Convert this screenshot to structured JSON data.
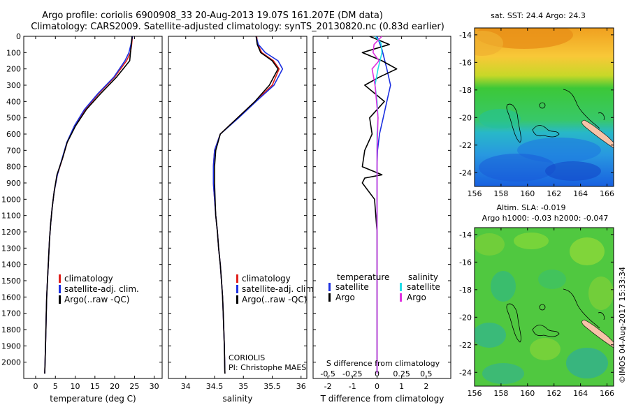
{
  "header": {
    "line1": "Argo profile: coriolis 6900908_33 20-Aug-2013 19.07S 161.207E (DM data)",
    "line2": "Climatology: CARS2009. Satellite-adjusted climatology: synTS_20130820.nc (0.83d earlier)"
  },
  "colors": {
    "climatology": "#e0201c",
    "satellite": "#1c30e0",
    "argo": "#000000",
    "salinity_satellite": "#22dde8",
    "salinity_argo": "#e030e0",
    "land": "#f7c3a8"
  },
  "chart_data": [
    {
      "type": "line",
      "id": "temperature",
      "xlabel": "temperature (deg C)",
      "ylabel": "",
      "xlim": [
        -3,
        32
      ],
      "ylim": [
        0,
        2100
      ],
      "y_inverted": true,
      "x_ticks": [
        "0",
        "5",
        "10",
        "15",
        "20",
        "25",
        "30"
      ],
      "y_ticks": [
        "0",
        "100",
        "200",
        "300",
        "400",
        "500",
        "600",
        "700",
        "800",
        "900",
        "1000",
        "1100",
        "1200",
        "1300",
        "1400",
        "1500",
        "1600",
        "1700",
        "1800",
        "1900",
        "2000"
      ],
      "legend": [
        "climatology",
        "satellite-adj. clim.",
        "Argo(..raw -QC)"
      ],
      "legend_position": "center-left",
      "series": [
        {
          "name": "climatology",
          "x": [
            24.5,
            24.3,
            24.0,
            23.0,
            20.0,
            16.0,
            12.5,
            10.0,
            8.0,
            6.8,
            5.5,
            4.7,
            4.2,
            3.8,
            3.5,
            3.2,
            3.0,
            2.8,
            2.7,
            2.6,
            2.5,
            2.4,
            2.3
          ],
          "y": [
            0,
            50,
            100,
            150,
            250,
            350,
            450,
            550,
            650,
            750,
            850,
            950,
            1050,
            1150,
            1250,
            1400,
            1500,
            1600,
            1700,
            1800,
            1900,
            2000,
            2070
          ]
        },
        {
          "name": "satellite-adj. clim.",
          "x": [
            24.5,
            24.1,
            23.6,
            22.6,
            19.8,
            15.8,
            12.3,
            9.8,
            7.9,
            6.7,
            5.5,
            4.7,
            4.2,
            3.8,
            3.5,
            3.2,
            3.0,
            2.8,
            2.7,
            2.6,
            2.5,
            2.4,
            2.3
          ],
          "y": [
            0,
            50,
            100,
            150,
            250,
            350,
            450,
            550,
            650,
            750,
            850,
            950,
            1050,
            1150,
            1250,
            1400,
            1500,
            1600,
            1700,
            1800,
            1900,
            2000,
            2070
          ]
        },
        {
          "name": "Argo(..raw -QC)",
          "x": [
            24.4,
            24.2,
            24.0,
            23.8,
            20.5,
            16.5,
            12.8,
            10.1,
            8.0,
            6.8,
            5.4,
            4.7,
            4.2,
            3.8,
            3.5,
            3.2,
            3.0,
            2.8,
            2.7,
            2.6,
            2.5,
            2.4,
            2.3
          ],
          "y": [
            0,
            50,
            100,
            150,
            250,
            350,
            450,
            550,
            650,
            750,
            850,
            950,
            1050,
            1150,
            1250,
            1400,
            1500,
            1600,
            1700,
            1800,
            1900,
            2000,
            2070
          ]
        }
      ]
    },
    {
      "type": "line",
      "id": "salinity",
      "xlabel": "salinity",
      "ylabel": "",
      "xlim": [
        33.7,
        36.1
      ],
      "ylim": [
        0,
        2100
      ],
      "y_inverted": true,
      "x_ticks": [
        "34",
        "34.5",
        "35",
        "35.5",
        "36"
      ],
      "legend": [
        "climatology",
        "satellite-adj. clim.",
        "Argo(..raw -QC)"
      ],
      "legend_position": "center-right",
      "annotation": [
        "CORIOLIS",
        "PI: Christophe MAES"
      ],
      "series": [
        {
          "name": "climatology",
          "x": [
            35.23,
            35.25,
            35.32,
            35.52,
            35.62,
            35.5,
            35.2,
            34.9,
            34.6,
            34.5,
            34.48,
            34.48,
            34.5,
            34.52,
            34.55,
            34.57,
            34.6,
            34.62,
            34.64,
            34.65,
            34.66,
            34.67,
            34.68
          ],
          "y": [
            0,
            50,
            100,
            150,
            200,
            300,
            400,
            500,
            600,
            700,
            800,
            900,
            1000,
            1100,
            1200,
            1300,
            1400,
            1500,
            1600,
            1700,
            1800,
            1900,
            2070
          ]
        },
        {
          "name": "satellite-adj. clim.",
          "x": [
            35.22,
            35.26,
            35.38,
            35.6,
            35.68,
            35.53,
            35.22,
            34.92,
            34.6,
            34.5,
            34.48,
            34.48,
            34.5,
            34.52,
            34.55,
            34.57,
            34.6,
            34.62,
            34.64,
            34.65,
            34.66,
            34.67,
            34.68
          ],
          "y": [
            0,
            50,
            100,
            150,
            200,
            300,
            400,
            500,
            600,
            700,
            800,
            900,
            1000,
            1100,
            1200,
            1300,
            1400,
            1500,
            1600,
            1700,
            1800,
            1900,
            2070
          ]
        },
        {
          "name": "Argo(..raw -QC)",
          "x": [
            35.22,
            35.24,
            35.3,
            35.5,
            35.6,
            35.45,
            35.2,
            34.9,
            34.6,
            34.52,
            34.5,
            34.5,
            34.51,
            34.52,
            34.55,
            34.57,
            34.6,
            34.62,
            34.64,
            34.65,
            34.66,
            34.67,
            34.68
          ],
          "y": [
            0,
            50,
            100,
            150,
            200,
            300,
            400,
            500,
            600,
            700,
            800,
            900,
            1000,
            1100,
            1200,
            1300,
            1400,
            1500,
            1600,
            1700,
            1800,
            1900,
            2070
          ]
        }
      ]
    },
    {
      "type": "line",
      "id": "differences",
      "xlabel": "T difference from climatology",
      "xlabel_top": "S difference from climatology",
      "xlim": [
        -2.6,
        3.0
      ],
      "ylim": [
        0,
        2100
      ],
      "y_inverted": true,
      "x_ticks": [
        "-2",
        "-1",
        "0",
        "1",
        "2"
      ],
      "s_ticks": [
        "-0.5",
        "-0.25",
        "0",
        "0.25",
        "0.5"
      ],
      "s_scale_factor": 4,
      "legend_headers": [
        "temperature",
        "salinity"
      ],
      "legend": [
        "satellite",
        "Argo",
        "satellite",
        "Argo"
      ],
      "legend_position": "center",
      "series": [
        {
          "name": "temperature satellite",
          "variable": "T",
          "x": [
            0,
            0.2,
            0.4,
            0.55,
            0.4,
            0.25,
            0.1,
            0.02,
            0.0,
            0.0,
            0.0,
            0.0,
            0.0,
            0.0,
            0.0
          ],
          "y": [
            0,
            80,
            200,
            300,
            400,
            500,
            600,
            700,
            800,
            900,
            1000,
            1200,
            1500,
            1800,
            2070
          ]
        },
        {
          "name": "temperature Argo",
          "x": [
            -0.3,
            0.5,
            -0.6,
            0.2,
            0.8,
            0.1,
            -0.5,
            0.3,
            -0.3,
            -0.2,
            -0.5,
            -0.6,
            0.2,
            -0.5,
            -0.6,
            -0.1,
            0.0,
            0.0,
            0.0,
            0.0
          ],
          "y": [
            0,
            50,
            100,
            150,
            200,
            250,
            300,
            400,
            500,
            600,
            700,
            800,
            850,
            870,
            900,
            1000,
            1200,
            1500,
            1800,
            2070
          ]
        },
        {
          "name": "salinity satellite",
          "variable": "S",
          "x": [
            -0.02,
            0.04,
            0.05,
            0.01,
            -0.02,
            0.0,
            0.01,
            0.0,
            0.0,
            0.0,
            0.0
          ],
          "y": [
            0,
            40,
            100,
            200,
            300,
            400,
            500,
            600,
            800,
            1200,
            2070
          ]
        },
        {
          "name": "salinity Argo",
          "variable": "S",
          "x": [
            0.05,
            -0.03,
            -0.04,
            0.02,
            -0.05,
            -0.02,
            0.01,
            0.0,
            0.0,
            0.0
          ],
          "y": [
            0,
            50,
            100,
            150,
            200,
            300,
            500,
            700,
            1200,
            2070
          ]
        }
      ]
    },
    {
      "type": "heatmap",
      "id": "sst_map",
      "title": "sat. SST: 24.4  Argo: 24.3",
      "x_ticks": [
        "156",
        "158",
        "160",
        "162",
        "164",
        "166"
      ],
      "y_ticks": [
        "-14",
        "-16",
        "-18",
        "-20",
        "-22",
        "-24"
      ],
      "xlim": [
        156,
        166.5
      ],
      "ylim": [
        -25,
        -13.5
      ],
      "argo_position": [
        161.207,
        -19.07
      ]
    },
    {
      "type": "heatmap",
      "id": "sla_map",
      "title": [
        "Altim. SLA: -0.019",
        "Argo h1000: -0.03  h2000: -0.047"
      ],
      "x_ticks": [
        "156",
        "158",
        "160",
        "162",
        "164",
        "166"
      ],
      "y_ticks": [
        "-14",
        "-16",
        "-18",
        "-20",
        "-22",
        "-24"
      ],
      "xlim": [
        156,
        166.5
      ],
      "ylim": [
        -25,
        -13.5
      ],
      "argo_position": [
        161.207,
        -19.07
      ]
    }
  ],
  "footer_stamp": "©IMOS 04-Aug-2017 15:33:34"
}
